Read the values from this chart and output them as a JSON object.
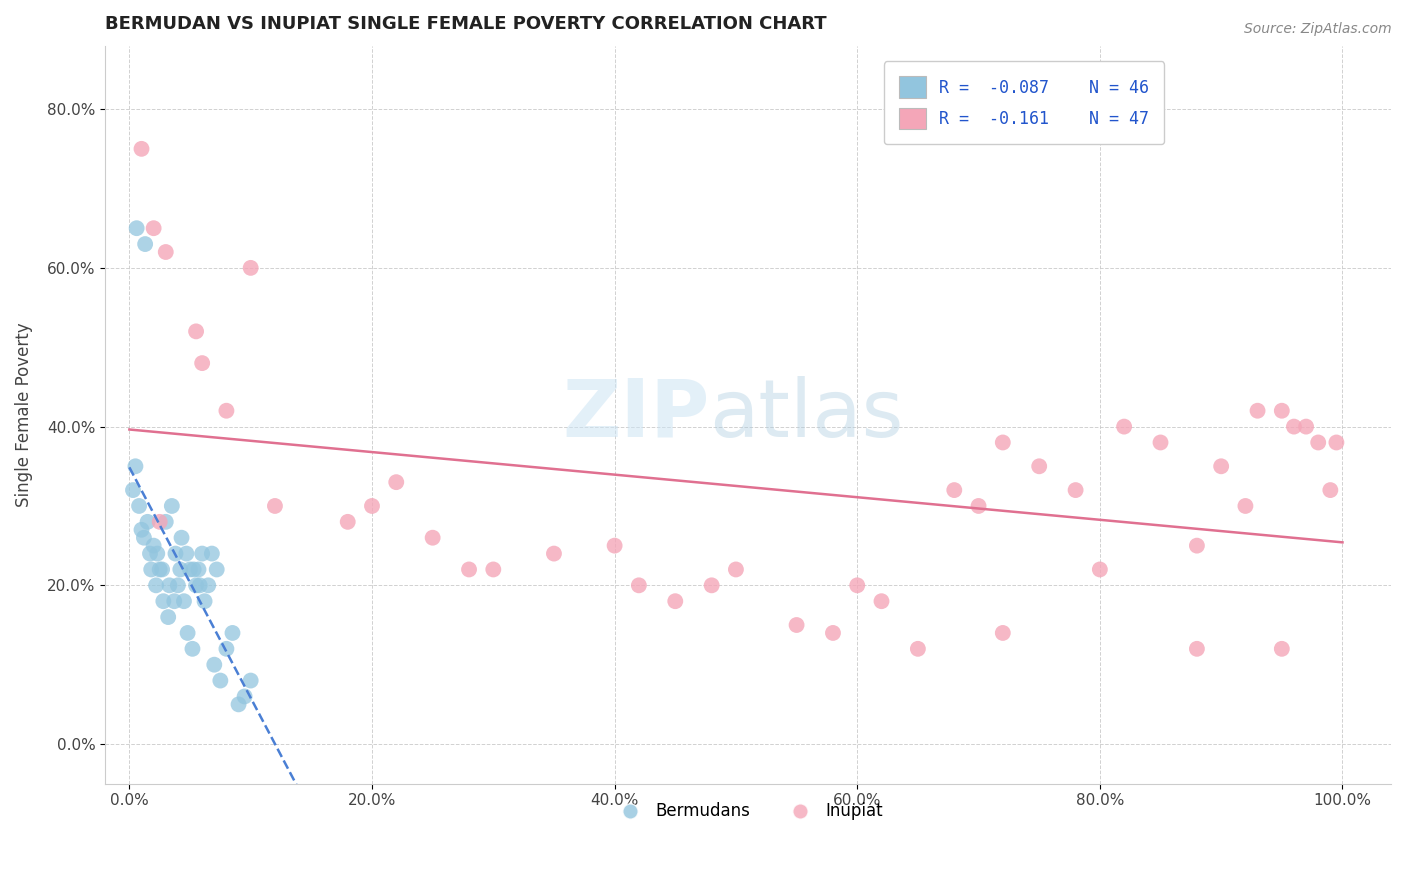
{
  "title": "BERMUDAN VS INUPIAT SINGLE FEMALE POVERTY CORRELATION CHART",
  "source": "Source: ZipAtlas.com",
  "ylabel": "Single Female Poverty",
  "x_ticks": [
    0.0,
    20.0,
    40.0,
    60.0,
    80.0,
    100.0
  ],
  "x_tick_labels": [
    "0.0%",
    "20.0%",
    "40.0%",
    "60.0%",
    "80.0%",
    "100.0%"
  ],
  "y_ticks": [
    0.0,
    20.0,
    40.0,
    60.0,
    80.0
  ],
  "y_tick_labels": [
    "0.0%",
    "20.0%",
    "40.0%",
    "60.0%",
    "80.0%"
  ],
  "xlim": [
    -2,
    104
  ],
  "ylim": [
    -5,
    88
  ],
  "legend_r": [
    -0.087,
    -0.161
  ],
  "legend_n": [
    46,
    47
  ],
  "blue_color": "#92c5de",
  "pink_color": "#f4a6b8",
  "blue_line_color": "#4a7fd4",
  "pink_line_color": "#e07090",
  "bermudans_x": [
    0.3,
    0.5,
    0.8,
    1.0,
    1.2,
    1.5,
    1.7,
    1.8,
    2.0,
    2.2,
    2.3,
    2.5,
    2.7,
    2.8,
    3.0,
    3.2,
    3.3,
    3.5,
    3.7,
    3.8,
    4.0,
    4.2,
    4.3,
    4.5,
    4.7,
    4.8,
    5.0,
    5.2,
    5.3,
    5.5,
    5.7,
    5.8,
    6.0,
    6.2,
    6.5,
    6.8,
    7.0,
    7.2,
    7.5,
    8.0,
    8.5,
    9.0,
    9.5,
    10.0,
    0.6,
    1.3
  ],
  "bermudans_y": [
    32,
    35,
    30,
    27,
    26,
    28,
    24,
    22,
    25,
    20,
    24,
    22,
    22,
    18,
    28,
    16,
    20,
    30,
    18,
    24,
    20,
    22,
    26,
    18,
    24,
    14,
    22,
    12,
    22,
    20,
    22,
    20,
    24,
    18,
    20,
    24,
    10,
    22,
    8,
    12,
    14,
    5,
    6,
    8,
    65,
    63
  ],
  "inupiat_x": [
    1.0,
    2.0,
    3.0,
    5.5,
    6.0,
    10.0,
    12.0,
    18.0,
    20.0,
    22.0,
    25.0,
    28.0,
    30.0,
    35.0,
    40.0,
    42.0,
    45.0,
    48.0,
    50.0,
    55.0,
    58.0,
    60.0,
    62.0,
    65.0,
    68.0,
    70.0,
    72.0,
    72.0,
    75.0,
    78.0,
    80.0,
    82.0,
    85.0,
    88.0,
    88.0,
    90.0,
    92.0,
    93.0,
    95.0,
    95.0,
    96.0,
    97.0,
    98.0,
    99.0,
    99.5,
    2.5,
    8.0
  ],
  "inupiat_y": [
    75,
    65,
    62,
    52,
    48,
    60,
    30,
    28,
    30,
    33,
    26,
    22,
    22,
    24,
    25,
    20,
    18,
    20,
    22,
    15,
    14,
    20,
    18,
    12,
    32,
    30,
    38,
    14,
    35,
    32,
    22,
    40,
    38,
    25,
    12,
    35,
    30,
    42,
    42,
    12,
    40,
    40,
    38,
    32,
    38,
    28,
    42
  ]
}
